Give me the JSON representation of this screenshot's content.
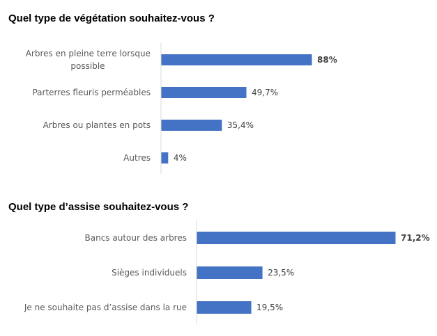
{
  "chart_data": [
    {
      "type": "bar",
      "orientation": "horizontal",
      "title": "Quel type de végétation souhaitez-vous ?",
      "categories": [
        [
          "Arbres en pleine terre lorsque",
          "possible"
        ],
        [
          "Parterres fleuris perméables"
        ],
        [
          "Arbres ou plantes en pots"
        ],
        [
          "Autres"
        ]
      ],
      "values": [
        88,
        49.7,
        35.4,
        4
      ],
      "data_labels": [
        "88%",
        "49,7%",
        "35,4%",
        "4%"
      ],
      "highlight_max": true,
      "color": "#4472C4",
      "grid": false
    },
    {
      "type": "bar",
      "orientation": "horizontal",
      "title": "Quel type d’assise souhaitez-vous ?",
      "categories": [
        [
          "Bancs autour des arbres"
        ],
        [
          "Sièges  individuels"
        ],
        [
          "Je ne souhaite pas d’assise dans la rue"
        ]
      ],
      "values": [
        71.2,
        23.5,
        19.5
      ],
      "data_labels": [
        "71,2%",
        "23,5%",
        "19,5%"
      ],
      "highlight_max": true,
      "color": "#4472C4",
      "grid": false
    }
  ]
}
